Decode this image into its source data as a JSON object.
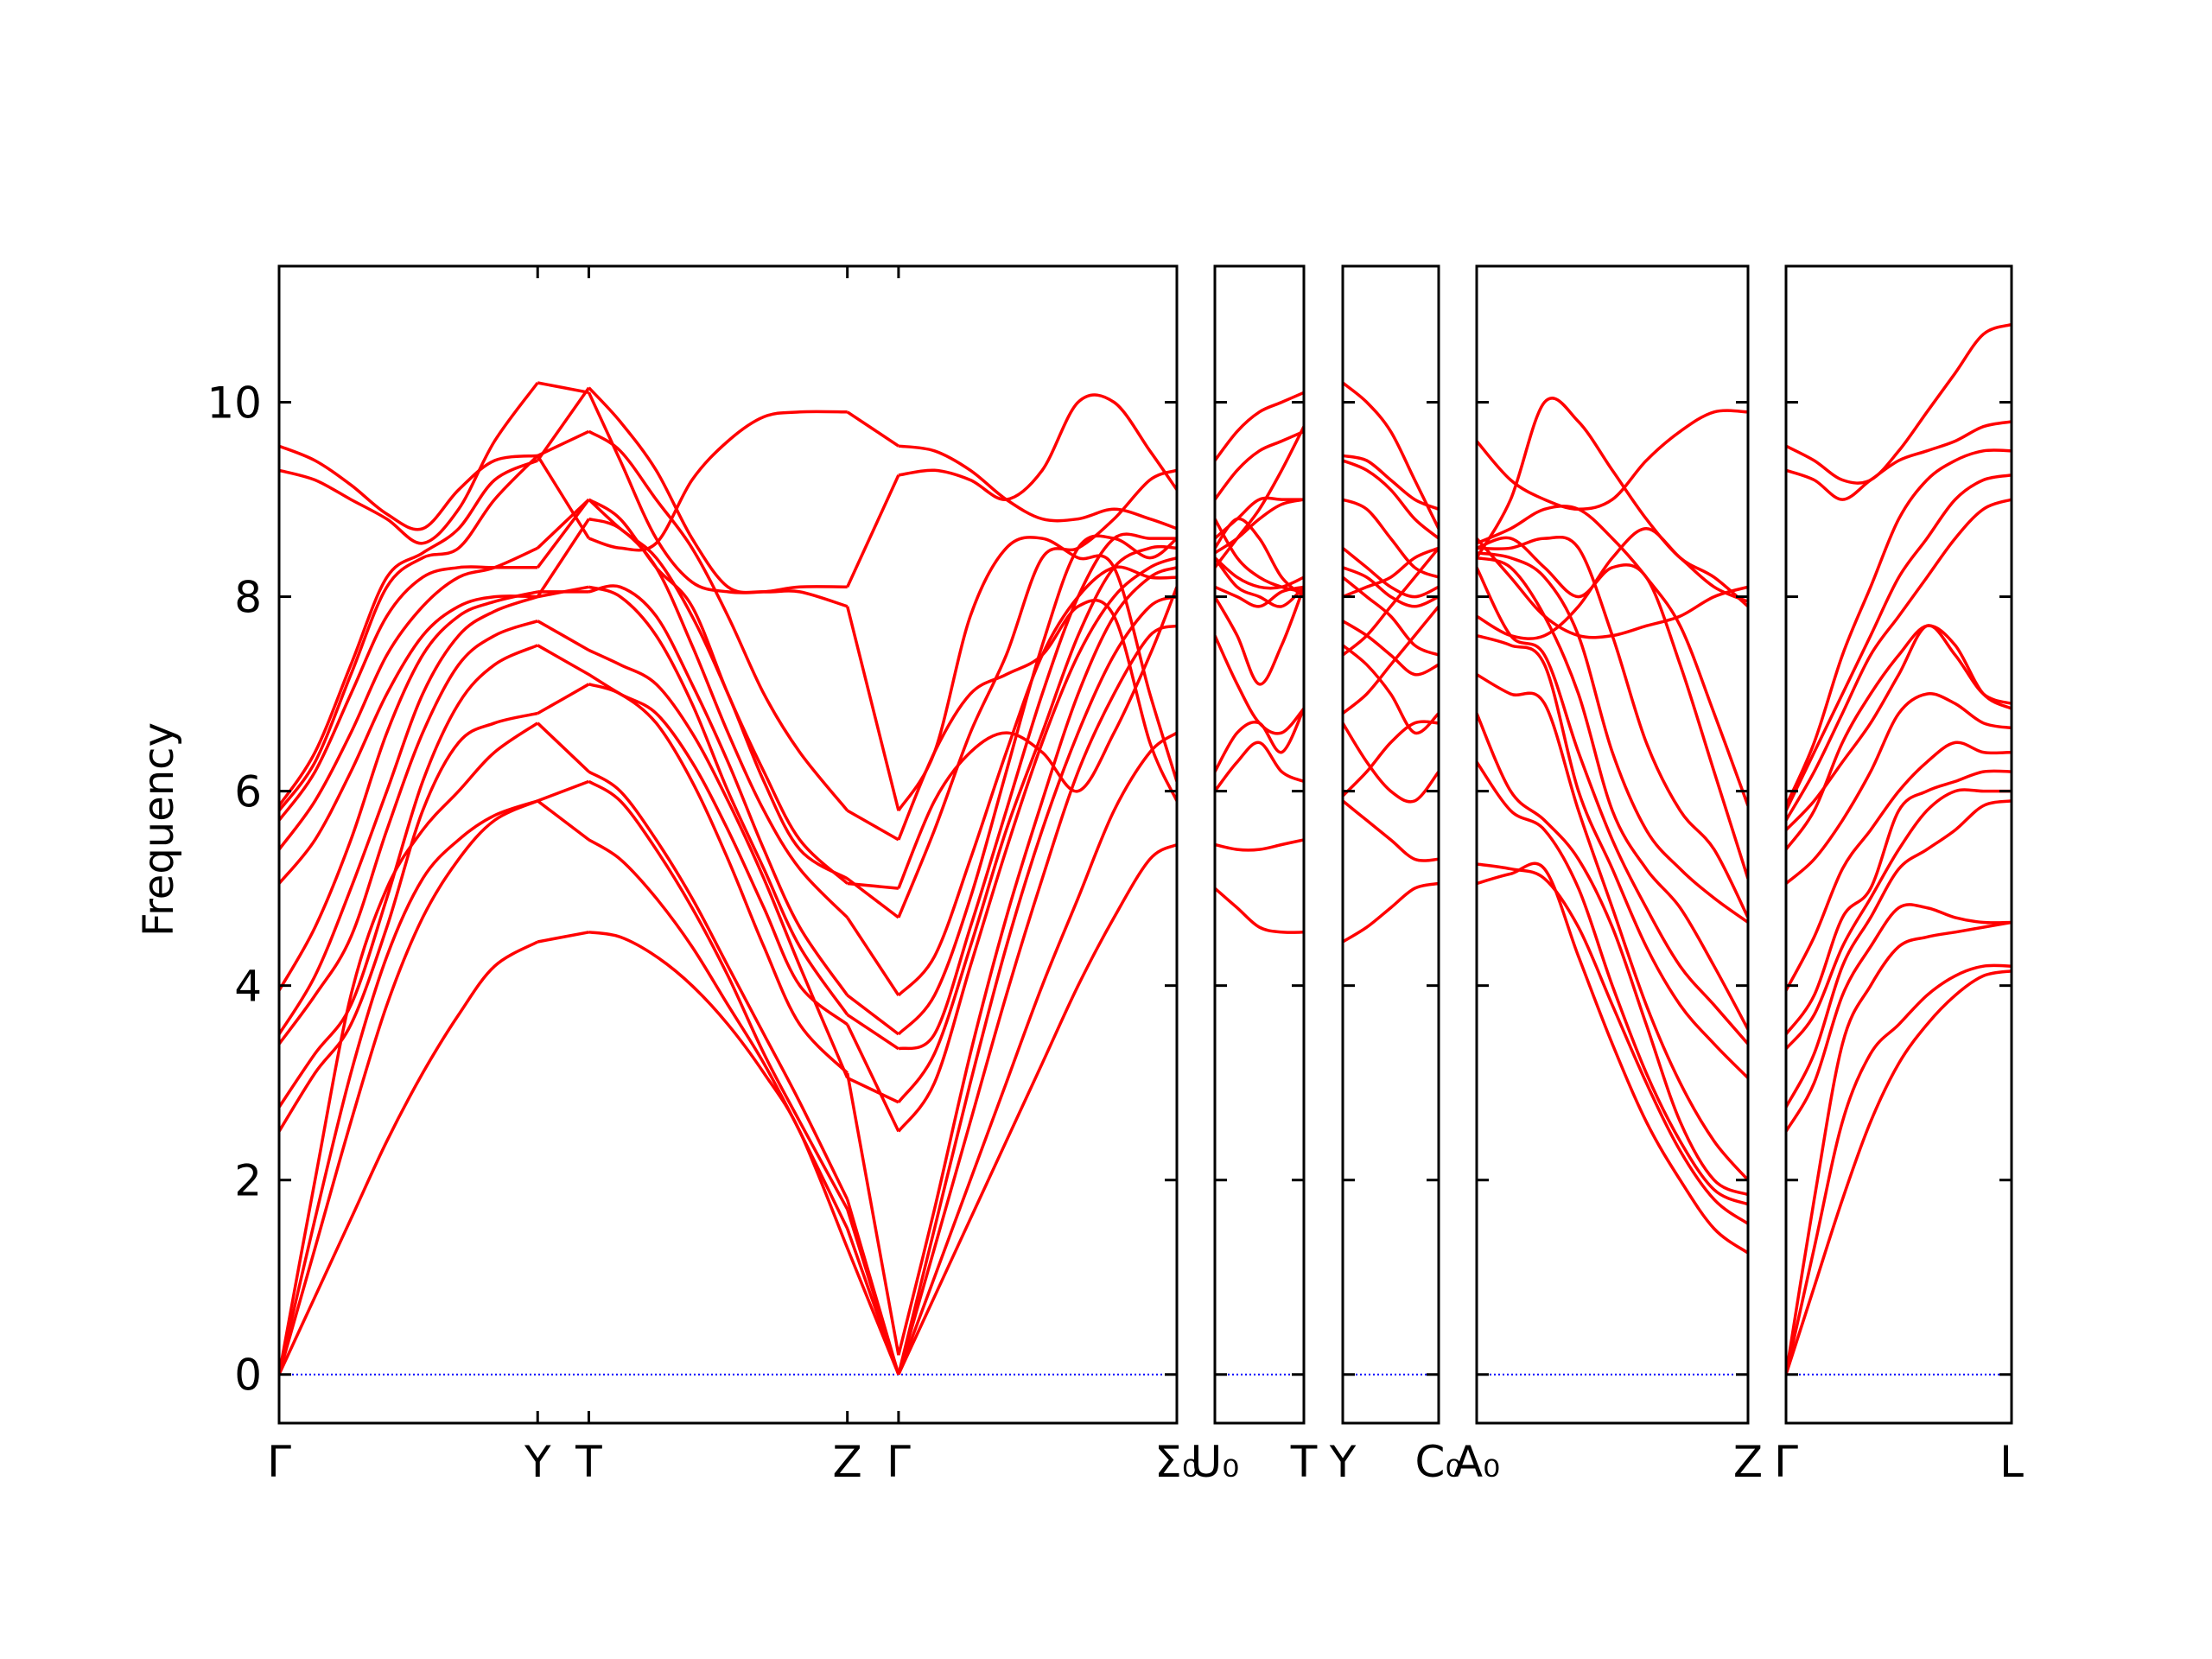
{
  "chart_data": {
    "type": "line",
    "title": "",
    "xlabel": "",
    "ylabel": "Frequency",
    "ylim": [
      -0.5,
      11.4
    ],
    "yticks": [
      0,
      2,
      4,
      6,
      8,
      10
    ],
    "ytick_labels": [
      "0",
      "2",
      "4",
      "6",
      "8",
      "10"
    ],
    "colors": {
      "bands": "#ff0000",
      "zero_line": "#0000ff",
      "axes": "#000000"
    },
    "panels": [
      {
        "xlim": [
          0,
          1
        ],
        "ticks": [
          {
            "x": 0.0,
            "label": "Γ"
          },
          {
            "x": 0.288,
            "label": "Y"
          },
          {
            "x": 0.345,
            "label": "T"
          },
          {
            "x": 0.633,
            "label": "Z"
          },
          {
            "x": 0.69,
            "label": "Γ"
          },
          {
            "x": 1.0,
            "label": "Σ₀"
          }
        ],
        "x": [
          0,
          0.04,
          0.08,
          0.12,
          0.16,
          0.2,
          0.24,
          0.288,
          0.345,
          0.38,
          0.42,
          0.46,
          0.5,
          0.54,
          0.58,
          0.633,
          0.69,
          0.73,
          0.77,
          0.81,
          0.85,
          0.89,
          0.93,
          0.97,
          1.0
        ],
        "bands": [
          [
            0,
            0.8,
            1.6,
            2.4,
            3.1,
            3.7,
            4.2,
            4.45,
            4.55,
            4.5,
            4.3,
            4.0,
            3.6,
            3.1,
            2.5,
            1.3,
            0,
            0.8,
            1.6,
            2.4,
            3.2,
            4.0,
            4.7,
            5.3,
            5.45
          ],
          [
            0,
            1.3,
            2.6,
            3.8,
            4.7,
            5.3,
            5.7,
            5.9,
            5.5,
            5.3,
            4.9,
            4.4,
            3.8,
            3.2,
            2.5,
            1.5,
            0,
            1.0,
            2.0,
            3.0,
            4.0,
            4.9,
            5.8,
            6.4,
            6.6
          ],
          [
            0,
            1.6,
            3.1,
            4.3,
            5.1,
            5.5,
            5.75,
            5.9,
            6.1,
            5.9,
            5.4,
            4.8,
            4.1,
            3.3,
            2.6,
            1.7,
            0,
            1.3,
            2.6,
            3.9,
            5.1,
            6.2,
            7.0,
            7.6,
            7.7
          ],
          [
            0,
            2.0,
            3.9,
            5.0,
            5.6,
            6.0,
            6.4,
            6.7,
            6.2,
            6.0,
            5.5,
            4.9,
            4.2,
            3.5,
            2.8,
            1.8,
            0,
            1.5,
            3.0,
            4.4,
            5.6,
            6.6,
            7.4,
            7.9,
            8.0
          ],
          [
            2.5,
            3.1,
            3.6,
            4.6,
            5.8,
            6.5,
            6.7,
            6.8,
            7.1,
            7.0,
            6.7,
            6.1,
            5.3,
            4.4,
            3.6,
            3.1,
            0.2,
            1.7,
            3.3,
            4.7,
            5.9,
            7.0,
            7.8,
            8.2,
            8.3
          ],
          [
            2.75,
            3.3,
            3.8,
            4.9,
            6.1,
            6.9,
            7.3,
            7.5,
            7.2,
            7.0,
            6.8,
            6.3,
            5.6,
            4.8,
            4.0,
            3.6,
            2.5,
            3.0,
            4.2,
            5.4,
            6.5,
            7.4,
            8.0,
            8.3,
            8.4
          ],
          [
            3.4,
            3.9,
            4.5,
            5.6,
            6.6,
            7.3,
            7.6,
            7.75,
            7.45,
            7.3,
            7.1,
            6.6,
            5.9,
            5.1,
            4.2,
            3.05,
            2.8,
            3.3,
            4.4,
            5.6,
            6.6,
            7.6,
            8.3,
            8.5,
            8.5
          ],
          [
            3.5,
            4.1,
            5.0,
            6.0,
            7.0,
            7.6,
            7.85,
            8.0,
            8.1,
            8.0,
            7.6,
            6.9,
            6.0,
            5.2,
            4.4,
            3.7,
            3.35,
            3.5,
            4.6,
            5.8,
            7.0,
            8.0,
            8.6,
            8.6,
            8.6
          ],
          [
            3.95,
            4.6,
            5.5,
            6.6,
            7.4,
            7.8,
            7.95,
            8.05,
            8.05,
            8.1,
            7.8,
            7.1,
            6.3,
            5.4,
            4.6,
            3.9,
            3.5,
            3.9,
            4.9,
            6.2,
            7.5,
            8.5,
            8.6,
            8.4,
            8.6
          ],
          [
            5.05,
            5.5,
            6.2,
            7.0,
            7.6,
            7.9,
            8.0,
            8.0,
            8.8,
            8.7,
            8.3,
            7.5,
            6.6,
            5.8,
            5.2,
            4.7,
            3.9,
            4.3,
            5.3,
            6.4,
            7.4,
            8.0,
            8.3,
            8.2,
            8.2
          ],
          [
            5.4,
            5.9,
            6.6,
            7.4,
            7.9,
            8.2,
            8.3,
            8.5,
            9.0,
            8.7,
            8.4,
            7.8,
            7.0,
            6.1,
            5.4,
            5.1,
            4.7,
            5.6,
            6.6,
            7.4,
            8.4,
            8.5,
            8.8,
            9.2,
            9.3
          ],
          [
            5.7,
            6.2,
            7.0,
            7.8,
            8.2,
            8.3,
            8.3,
            8.3,
            9.0,
            8.8,
            8.3,
            7.9,
            7.0,
            6.2,
            5.5,
            5.05,
            5.0,
            5.9,
            6.4,
            6.6,
            6.4,
            6.0,
            6.6,
            7.4,
            8.1
          ],
          [
            5.8,
            6.3,
            7.2,
            8.1,
            8.4,
            8.5,
            9.0,
            9.45,
            9.7,
            9.5,
            9.0,
            8.5,
            7.8,
            7.0,
            6.4,
            5.8,
            5.5,
            6.4,
            7.0,
            7.2,
            7.4,
            7.9,
            7.8,
            6.5,
            5.9
          ],
          [
            5.85,
            6.4,
            7.3,
            8.2,
            8.45,
            8.7,
            9.2,
            9.4,
            10.15,
            9.8,
            9.3,
            8.6,
            8.1,
            8.05,
            8.05,
            7.9,
            5.8,
            6.4,
            7.8,
            8.5,
            8.6,
            8.4,
            8.3,
            7.0,
            6.1
          ],
          [
            9.3,
            9.2,
            9.0,
            8.8,
            8.55,
            8.9,
            9.6,
            10.2,
            10.1,
            9.4,
            8.6,
            8.15,
            8.05,
            8.05,
            8.1,
            8.1,
            9.25,
            9.3,
            9.2,
            9.0,
            9.3,
            10.0,
            10.0,
            9.5,
            9.1
          ],
          [
            9.55,
            9.4,
            9.15,
            8.85,
            8.7,
            9.1,
            9.4,
            9.45,
            8.6,
            8.5,
            8.55,
            9.2,
            9.6,
            9.85,
            9.9,
            9.9,
            9.55,
            9.5,
            9.3,
            9.0,
            8.8,
            8.8,
            8.9,
            8.8,
            8.7
          ]
        ]
      },
      {
        "xlim": [
          0,
          1
        ],
        "ticks": [
          {
            "x": 0.0,
            "label": "U₀"
          },
          {
            "x": 1.0,
            "label": "T"
          }
        ],
        "x": [
          0,
          0.25,
          0.5,
          0.75,
          1.0
        ],
        "bands": [
          [
            5.0,
            4.8,
            4.6,
            4.55,
            4.55
          ],
          [
            5.45,
            5.4,
            5.4,
            5.45,
            5.5
          ],
          [
            6.0,
            6.3,
            6.5,
            6.2,
            6.1
          ],
          [
            6.2,
            6.6,
            6.7,
            6.4,
            6.85
          ],
          [
            7.6,
            7.1,
            6.7,
            6.6,
            6.85
          ],
          [
            8.0,
            7.6,
            7.1,
            7.5,
            8.1
          ],
          [
            8.1,
            8.0,
            7.9,
            8.05,
            8.1
          ],
          [
            8.4,
            8.1,
            8.0,
            7.9,
            8.1
          ],
          [
            8.45,
            8.6,
            8.8,
            8.95,
            9.0
          ],
          [
            8.4,
            8.2,
            8.1,
            8.1,
            8.2
          ],
          [
            8.6,
            8.8,
            9.0,
            9.0,
            9.0
          ],
          [
            9.0,
            9.3,
            9.5,
            9.6,
            9.7
          ],
          [
            9.4,
            9.7,
            9.9,
            10.0,
            10.1
          ],
          [
            8.3,
            8.6,
            8.9,
            9.3,
            9.75
          ],
          [
            8.5,
            8.8,
            8.6,
            8.2,
            8.0
          ],
          [
            8.8,
            8.4,
            8.2,
            8.1,
            8.05
          ]
        ]
      },
      {
        "xlim": [
          0,
          1
        ],
        "ticks": [
          {
            "x": 0.0,
            "label": "Y"
          },
          {
            "x": 1.0,
            "label": "C₀"
          }
        ],
        "x": [
          0,
          0.25,
          0.5,
          0.75,
          1.0
        ],
        "bands": [
          [
            4.45,
            4.6,
            4.8,
            5.0,
            5.05
          ],
          [
            5.9,
            5.7,
            5.5,
            5.3,
            5.3
          ],
          [
            5.95,
            6.2,
            6.5,
            6.7,
            6.7
          ],
          [
            6.7,
            6.3,
            6.0,
            5.9,
            6.2
          ],
          [
            6.8,
            7.0,
            7.3,
            7.6,
            7.9
          ],
          [
            7.5,
            7.3,
            7.0,
            6.6,
            6.8
          ],
          [
            7.75,
            7.6,
            7.4,
            7.2,
            7.3
          ],
          [
            8.0,
            8.1,
            8.2,
            8.4,
            8.5
          ],
          [
            8.3,
            8.2,
            8.0,
            7.9,
            8.0
          ],
          [
            8.5,
            8.3,
            8.1,
            8.0,
            8.1
          ],
          [
            9.0,
            8.9,
            8.6,
            8.3,
            8.2
          ],
          [
            9.4,
            9.3,
            9.1,
            8.8,
            8.6
          ],
          [
            9.45,
            9.4,
            9.2,
            9.0,
            8.9
          ],
          [
            10.2,
            10.0,
            9.7,
            9.2,
            8.7
          ],
          [
            8.2,
            8.0,
            7.8,
            7.5,
            7.4
          ],
          [
            7.4,
            7.6,
            7.9,
            8.2,
            8.5
          ]
        ]
      },
      {
        "xlim": [
          0,
          1
        ],
        "ticks": [
          {
            "x": 0.0,
            "label": "A₀"
          },
          {
            "x": 1.0,
            "label": "Z"
          }
        ],
        "x": [
          0,
          0.125,
          0.25,
          0.375,
          0.5,
          0.625,
          0.75,
          0.875,
          1.0
        ],
        "bands": [
          [
            5.05,
            5.15,
            5.2,
            4.3,
            3.4,
            2.6,
            2.0,
            1.5,
            1.25
          ],
          [
            5.25,
            5.2,
            5.1,
            4.6,
            3.8,
            3.0,
            2.3,
            1.8,
            1.55
          ],
          [
            6.3,
            5.8,
            5.6,
            5.0,
            4.0,
            3.1,
            2.4,
            1.9,
            1.75
          ],
          [
            6.8,
            6.0,
            5.7,
            5.3,
            4.6,
            3.6,
            2.6,
            2.0,
            1.85
          ],
          [
            7.2,
            7.0,
            6.9,
            5.8,
            4.8,
            3.8,
            3.0,
            2.4,
            2.0
          ],
          [
            7.6,
            7.5,
            7.3,
            6.0,
            5.2,
            4.4,
            3.8,
            3.4,
            3.05
          ],
          [
            8.3,
            7.6,
            7.4,
            6.4,
            5.5,
            4.8,
            4.2,
            3.8,
            3.4
          ],
          [
            8.4,
            8.3,
            7.8,
            7.0,
            5.8,
            5.2,
            4.8,
            4.2,
            3.55
          ],
          [
            8.45,
            8.4,
            8.2,
            7.6,
            6.4,
            5.6,
            5.2,
            4.9,
            4.65
          ],
          [
            8.5,
            8.5,
            8.6,
            8.5,
            7.6,
            6.5,
            5.8,
            5.4,
            4.7
          ],
          [
            8.5,
            8.6,
            8.3,
            8.0,
            8.3,
            8.2,
            7.3,
            6.2,
            5.1
          ],
          [
            8.55,
            8.7,
            8.9,
            8.9,
            8.6,
            8.2,
            7.7,
            6.8,
            5.85
          ],
          [
            8.4,
            9.0,
            10.0,
            9.8,
            9.3,
            8.8,
            8.4,
            8.2,
            7.9
          ],
          [
            9.6,
            9.2,
            9.0,
            8.9,
            9.0,
            9.4,
            9.7,
            9.9,
            9.9
          ],
          [
            8.6,
            8.2,
            7.8,
            7.6,
            7.6,
            7.7,
            7.8,
            8.0,
            8.1
          ],
          [
            7.8,
            7.6,
            7.6,
            7.9,
            8.4,
            8.7,
            8.4,
            8.1,
            7.95
          ]
        ]
      },
      {
        "xlim": [
          0,
          1
        ],
        "ticks": [
          {
            "x": 0.0,
            "label": "Γ"
          },
          {
            "x": 1.0,
            "label": "L"
          }
        ],
        "x": [
          0,
          0.125,
          0.25,
          0.375,
          0.5,
          0.625,
          0.75,
          0.875,
          1.0
        ],
        "bands": [
          [
            0,
            0.9,
            1.8,
            2.6,
            3.2,
            3.6,
            3.9,
            4.1,
            4.15
          ],
          [
            0,
            1.3,
            2.6,
            3.3,
            3.6,
            3.9,
            4.1,
            4.2,
            4.2
          ],
          [
            0,
            1.8,
            3.4,
            4.0,
            4.4,
            4.5,
            4.55,
            4.6,
            4.65
          ],
          [
            2.5,
            3.0,
            3.9,
            4.4,
            4.8,
            4.8,
            4.7,
            4.65,
            4.65
          ],
          [
            2.75,
            3.3,
            4.2,
            4.7,
            5.2,
            5.4,
            5.6,
            5.85,
            5.9
          ],
          [
            3.35,
            3.7,
            4.4,
            4.9,
            5.4,
            5.8,
            6.0,
            6.0,
            6.0
          ],
          [
            3.5,
            3.9,
            4.7,
            5.0,
            5.8,
            6.0,
            6.1,
            6.2,
            6.2
          ],
          [
            3.95,
            4.5,
            5.2,
            5.6,
            6.0,
            6.3,
            6.5,
            6.4,
            6.4
          ],
          [
            5.05,
            5.3,
            5.7,
            6.2,
            6.8,
            7.0,
            6.9,
            6.7,
            6.65
          ],
          [
            5.4,
            5.8,
            6.5,
            7.0,
            7.4,
            7.7,
            7.5,
            7.0,
            6.85
          ],
          [
            5.7,
            6.2,
            6.8,
            7.4,
            7.8,
            8.2,
            8.6,
            8.9,
            9.0
          ],
          [
            5.8,
            6.4,
            7.0,
            7.6,
            8.2,
            8.6,
            9.0,
            9.2,
            9.25
          ],
          [
            5.85,
            6.5,
            7.4,
            8.1,
            8.8,
            9.2,
            9.4,
            9.5,
            9.5
          ],
          [
            9.3,
            9.2,
            9.0,
            9.2,
            9.4,
            9.5,
            9.6,
            9.75,
            9.8
          ],
          [
            9.55,
            9.4,
            9.2,
            9.2,
            9.5,
            9.9,
            10.3,
            10.7,
            10.8
          ],
          [
            5.6,
            5.9,
            6.3,
            6.7,
            7.2,
            7.7,
            7.4,
            7.0,
            6.9
          ]
        ]
      }
    ]
  }
}
